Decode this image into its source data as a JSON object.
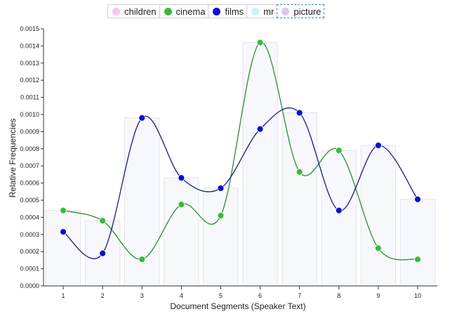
{
  "legend": [
    {
      "name": "children",
      "color": "#f6c4f2"
    },
    {
      "name": "cinema",
      "color": "#3cb93c"
    },
    {
      "name": "films",
      "color": "#0b0bd6"
    },
    {
      "name": "mr",
      "color": "#c8f4f4"
    },
    {
      "name": "picture",
      "color": "#d3c9ee"
    }
  ],
  "chart_data": {
    "type": "line",
    "xlabel": "Document Segments (Speaker Text)",
    "ylabel": "Relative Frequencies",
    "x": [
      1,
      2,
      3,
      4,
      5,
      6,
      7,
      8,
      9,
      10
    ],
    "ylim": [
      0,
      0.0015
    ],
    "yticks": [
      "0.0000",
      "0.0001",
      "0.0002",
      "0.0003",
      "0.0004",
      "0.0005",
      "0.0006",
      "0.0007",
      "0.0008",
      "0.0009",
      "0.0010",
      "0.0011",
      "0.0012",
      "0.0013",
      "0.0014",
      "0.0015"
    ],
    "series": [
      {
        "name": "cinema",
        "color": "#3cb93c",
        "line_color": "#2e8b2e",
        "values": [
          0.00044,
          0.00038,
          0.000155,
          0.000475,
          0.00041,
          0.00142,
          0.000665,
          0.00079,
          0.00022,
          0.000155
        ]
      },
      {
        "name": "films",
        "color": "#0b0bd6",
        "line_color": "#1a1a8c",
        "values": [
          0.000315,
          0.00019,
          0.00098,
          0.00063,
          0.00057,
          0.000915,
          0.00101,
          0.00044,
          0.00082,
          0.000505
        ]
      }
    ]
  }
}
